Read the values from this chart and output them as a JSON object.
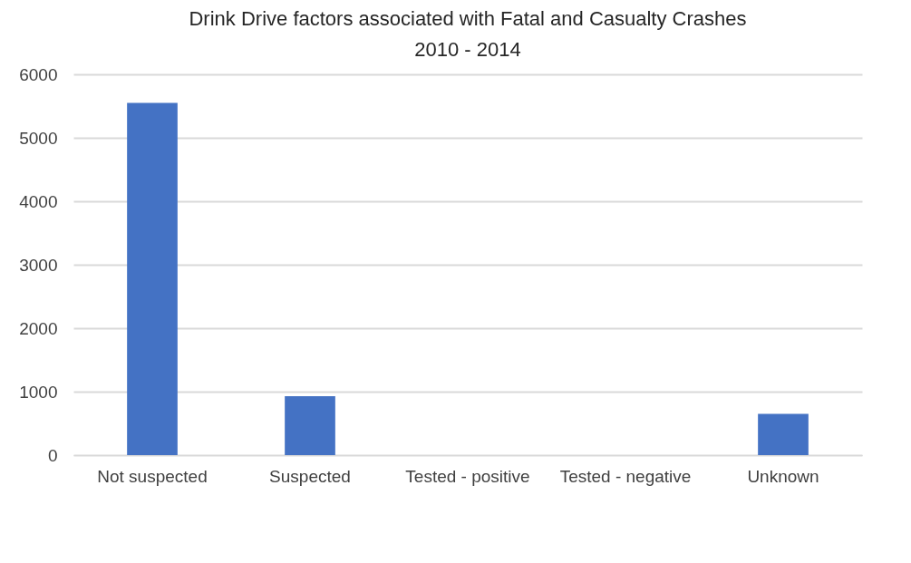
{
  "chart_data": {
    "type": "bar",
    "title": "Drink Drive factors associated with Fatal and Casualty Crashes 2010 - 2014",
    "categories": [
      "Not suspected",
      "Suspected",
      "Tested - positive",
      "Tested - negative",
      "Unknown"
    ],
    "values": [
      5550,
      930,
      0,
      0,
      650
    ],
    "color": "#4472c4",
    "ylim": [
      0,
      6000
    ],
    "yticks": [
      0,
      1000,
      2000,
      3000,
      4000,
      5000,
      6000
    ],
    "grid": "y"
  }
}
